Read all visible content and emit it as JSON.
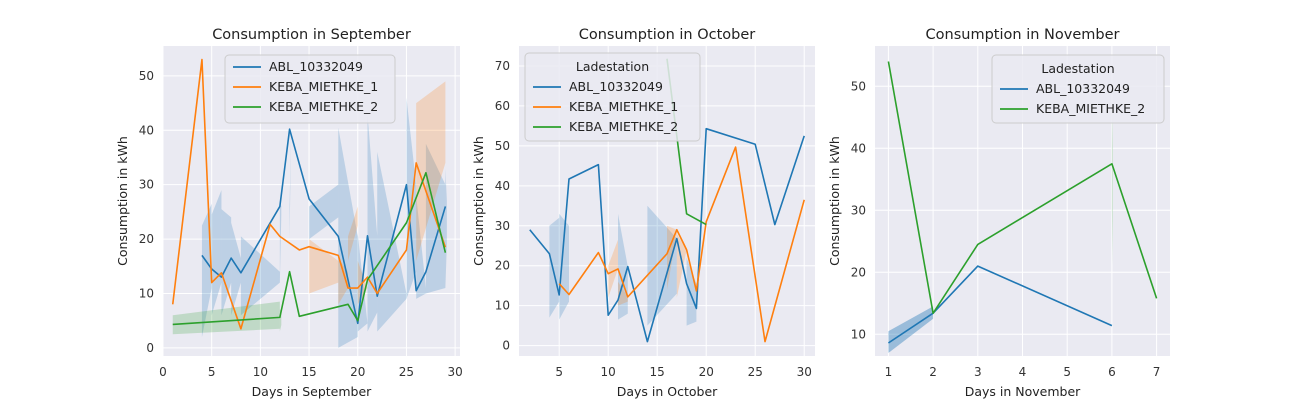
{
  "colors": {
    "ABL_10332049": "#1f77b4",
    "KEBA_MIETHKE_1": "#ff7f0e",
    "KEBA_MIETHKE_2": "#2ca02c",
    "plot_background": "#eaeaf2",
    "grid": "#ffffff"
  },
  "chart_data": [
    {
      "type": "line",
      "title": "Consumption in September",
      "xlabel": "Days in September",
      "ylabel": "Consumption in kWh",
      "xlim": [
        0,
        30.5
      ],
      "ylim": [
        -1.5,
        55.5
      ],
      "xticks": [
        0,
        5,
        10,
        15,
        20,
        25,
        30
      ],
      "yticks": [
        0,
        10,
        20,
        30,
        40,
        50
      ],
      "grid": true,
      "legend": {
        "title": "",
        "placement": "top-center",
        "entries": [
          "ABL_10332049",
          "KEBA_MIETHKE_1",
          "KEBA_MIETHKE_2"
        ]
      },
      "series": [
        {
          "name": "ABL_10332049",
          "x": [
            4,
            5,
            6,
            7,
            8,
            12,
            13,
            15,
            18,
            20,
            21,
            22,
            25,
            26,
            27,
            29
          ],
          "y": [
            17,
            14.5,
            13,
            16.5,
            13.8,
            26,
            40.2,
            27.4,
            20.5,
            4.5,
            20.6,
            9.5,
            30,
            10.5,
            14,
            26
          ],
          "band": [
            [
              22.5,
              26.5,
              11,
              2
            ],
            [
              24.5,
              29,
              12,
              6
            ],
            [
              25.5,
              24,
              12,
              6
            ],
            [
              23,
              16.5,
              12,
              6
            ],
            [
              20.5,
              14,
              12,
              6
            ],
            [
              27,
              26,
              24.5,
              12
            ],
            [
              26,
              40.2,
              40.2,
              20
            ],
            [
              26,
              30,
              24,
              20
            ],
            [
              40.5,
              20.5,
              2,
              0
            ],
            [
              21,
              4.5,
              4.5,
              3
            ],
            [
              43,
              20.6,
              6.5,
              3
            ],
            [
              36,
              10,
              9,
              3
            ],
            [
              46,
              30,
              14,
              9
            ],
            [
              28,
              11,
              10,
              9
            ],
            [
              37.5,
              30,
              11,
              10
            ],
            [
              33,
              27,
              19,
              11
            ]
          ]
        },
        {
          "name": "KEBA_MIETHKE_1",
          "x": [
            1,
            4,
            5,
            6,
            8,
            11,
            12,
            14,
            15,
            18,
            19,
            20,
            21,
            22,
            25,
            26,
            29
          ],
          "y": [
            8,
            53,
            12,
            13.8,
            3.5,
            22.7,
            20.5,
            18,
            18.6,
            17,
            11,
            11,
            13,
            10,
            18,
            34,
            18.5
          ],
          "band": [
            [
              20,
              16,
              12,
              10
            ],
            [
              16.5,
              14,
              11,
              8
            ],
            [
              20.5,
              26,
              22.5,
              16
            ],
            [
              16,
              11,
              11,
              8
            ],
            [
              45,
              49,
              34,
              16
            ]
          ]
        },
        {
          "name": "KEBA_MIETHKE_2",
          "x": [
            1,
            12,
            13,
            14,
            19,
            20,
            21,
            25,
            27,
            29
          ],
          "y": [
            4.3,
            5.6,
            14,
            5.8,
            8,
            5,
            12.5,
            23,
            32.2,
            17.5
          ],
          "band": [
            [
              6,
              8.5,
              3.5,
              2.5
            ],
            [
              7,
              7,
              4.2,
              3
            ]
          ]
        }
      ]
    },
    {
      "type": "line",
      "title": "Consumption in October",
      "xlabel": "Days in October",
      "ylabel": "Consumption in kWh",
      "xlim": [
        0.9,
        31.1
      ],
      "ylim": [
        -2.6,
        75.0
      ],
      "xticks": [
        5,
        10,
        15,
        20,
        25,
        30
      ],
      "yticks": [
        0,
        10,
        20,
        30,
        40,
        50,
        60,
        70
      ],
      "grid": true,
      "legend": {
        "title": "Ladestation",
        "placement": "top-left",
        "entries": [
          "ABL_10332049",
          "KEBA_MIETHKE_1",
          "KEBA_MIETHKE_2"
        ]
      },
      "series": [
        {
          "name": "ABL_10332049",
          "x": [
            2,
            4,
            5,
            6,
            9,
            10,
            11,
            12,
            14,
            17,
            18,
            19,
            20,
            25,
            27,
            30
          ],
          "y": [
            29,
            23,
            12.7,
            41.7,
            45.3,
            7.6,
            11.4,
            19.8,
            1,
            26.8,
            15.5,
            9.3,
            54.3,
            50.4,
            30.3,
            52.5
          ],
          "band": [
            [
              30,
              32,
              11,
              7
            ],
            [
              33,
              30,
              11,
              6.5
            ],
            [
              33,
              19.8,
              8,
              6.5
            ],
            [
              35,
              26.8,
              13,
              5
            ],
            [
              22,
              15.5,
              6,
              5
            ]
          ]
        },
        {
          "name": "KEBA_MIETHKE_1",
          "x": [
            5,
            6,
            9,
            10,
            11,
            12,
            16,
            17,
            18,
            19,
            20,
            23,
            26,
            30
          ],
          "y": [
            15.5,
            12.8,
            23.3,
            18,
            19.2,
            12.2,
            23,
            29,
            24,
            13.7,
            31,
            49.7,
            1,
            36.5
          ],
          "band": [
            [
              20,
              26.5,
              19.2,
              12
            ],
            [
              16,
              12.2,
              11,
              10
            ],
            [
              30,
              29,
              28,
              14
            ],
            [
              28,
              24,
              24,
              12
            ]
          ]
        },
        {
          "name": "KEBA_MIETHKE_2",
          "x": [
            16,
            17,
            18,
            20
          ],
          "y": [
            71.8,
            52.5,
            33,
            30.3
          ]
        }
      ]
    },
    {
      "type": "line",
      "title": "Consumption in November",
      "xlabel": "Days in November",
      "ylabel": "Consumption in kWh",
      "xlim": [
        0.7,
        7.3
      ],
      "ylim": [
        6.5,
        56.5
      ],
      "xticks": [
        1,
        2,
        3,
        4,
        5,
        6,
        7
      ],
      "yticks": [
        10,
        20,
        30,
        40,
        50
      ],
      "grid": true,
      "legend": {
        "title": "Ladestation",
        "placement": "top-right",
        "entries": [
          "ABL_10332049",
          "KEBA_MIETHKE_2"
        ]
      },
      "series": [
        {
          "name": "ABL_10332049",
          "x": [
            1,
            2,
            3,
            6
          ],
          "y": [
            8.6,
            13.4,
            21,
            11.4
          ],
          "band": [
            [
              10.5,
              14.5
            ],
            [
              7,
              12.5
            ]
          ]
        },
        {
          "name": "KEBA_MIETHKE_2",
          "x": [
            1,
            2,
            3,
            6,
            7
          ],
          "y": [
            54,
            13.4,
            24.5,
            37.5,
            15.8
          ],
          "band": [
            [
              48,
              21
            ]
          ]
        }
      ]
    }
  ]
}
